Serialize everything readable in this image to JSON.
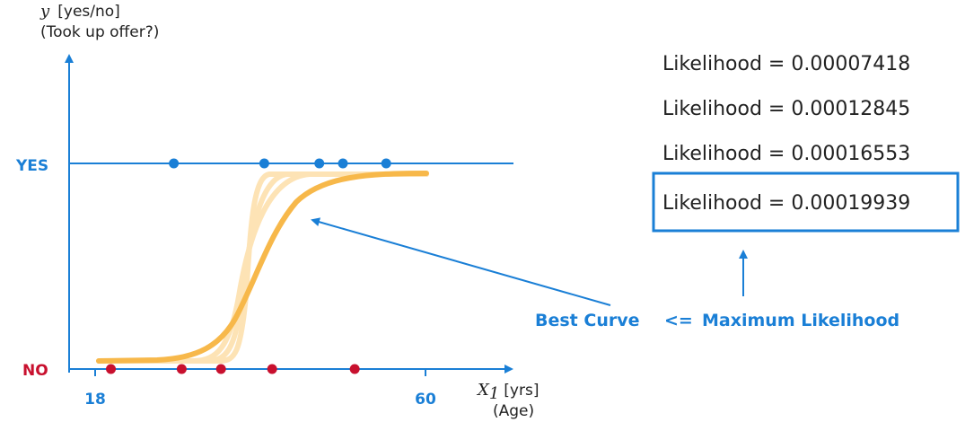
{
  "y_axis": {
    "var": "y",
    "unit": "[yes/no]",
    "caption": "(Took up offer?)"
  },
  "x_axis": {
    "var": "X",
    "sub": "1",
    "unit": "[yrs]",
    "caption": "(Age)"
  },
  "categories": {
    "yes": "YES",
    "no": "NO"
  },
  "ticks": [
    {
      "value": 18,
      "label": "18"
    },
    {
      "value": 60,
      "label": "60"
    }
  ],
  "likelihoods": [
    "Likelihood = 0.00007418",
    "Likelihood = 0.00012845",
    "Likelihood = 0.00016553",
    "Likelihood = 0.00019939"
  ],
  "callout": {
    "best": "Best Curve",
    "arrow": "<=",
    "max": "Maximum Likelihood"
  },
  "yes_ages": [
    28,
    39.5,
    46.5,
    49.5,
    55
  ],
  "no_ages": [
    20,
    29,
    34,
    40.5,
    51
  ],
  "colors": {
    "blue": "#1a7fd6",
    "red": "#c8102e",
    "best": "#f7b84a",
    "faded": "#fde3b5"
  }
}
